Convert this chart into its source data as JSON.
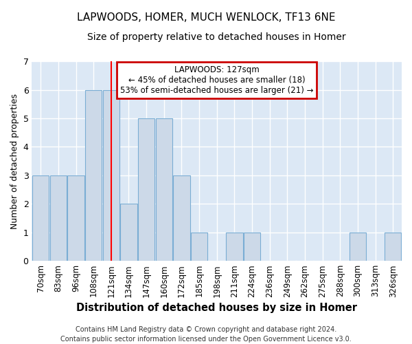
{
  "title": "LAPWOODS, HOMER, MUCH WENLOCK, TF13 6NE",
  "subtitle": "Size of property relative to detached houses in Homer",
  "xlabel": "Distribution of detached houses by size in Homer",
  "ylabel": "Number of detached properties",
  "footer1": "Contains HM Land Registry data © Crown copyright and database right 2024.",
  "footer2": "Contains public sector information licensed under the Open Government Licence v3.0.",
  "categories": [
    "70sqm",
    "83sqm",
    "96sqm",
    "108sqm",
    "121sqm",
    "134sqm",
    "147sqm",
    "160sqm",
    "172sqm",
    "185sqm",
    "198sqm",
    "211sqm",
    "224sqm",
    "236sqm",
    "249sqm",
    "262sqm",
    "275sqm",
    "288sqm",
    "300sqm",
    "313sqm",
    "326sqm"
  ],
  "values": [
    3,
    3,
    3,
    6,
    6,
    2,
    5,
    5,
    3,
    1,
    0,
    1,
    1,
    0,
    0,
    0,
    0,
    0,
    1,
    0,
    1
  ],
  "bar_color": "#ccd9e8",
  "bar_edge_color": "#7aadd4",
  "red_line_index": 4,
  "annotation_line1": "LAPWOODS: 127sqm",
  "annotation_line2": "← 45% of detached houses are smaller (18)",
  "annotation_line3": "53% of semi-detached houses are larger (21) →",
  "annotation_box_color": "#ffffff",
  "annotation_box_edge_color": "#cc0000",
  "ylim": [
    0,
    7
  ],
  "yticks": [
    0,
    1,
    2,
    3,
    4,
    5,
    6,
    7
  ],
  "fig_bg_color": "#ffffff",
  "plot_bg_color": "#dce8f5",
  "grid_color": "#ffffff",
  "title_fontsize": 11,
  "subtitle_fontsize": 10,
  "tick_fontsize": 8.5,
  "ylabel_fontsize": 9,
  "xlabel_fontsize": 10.5,
  "footer_fontsize": 7
}
